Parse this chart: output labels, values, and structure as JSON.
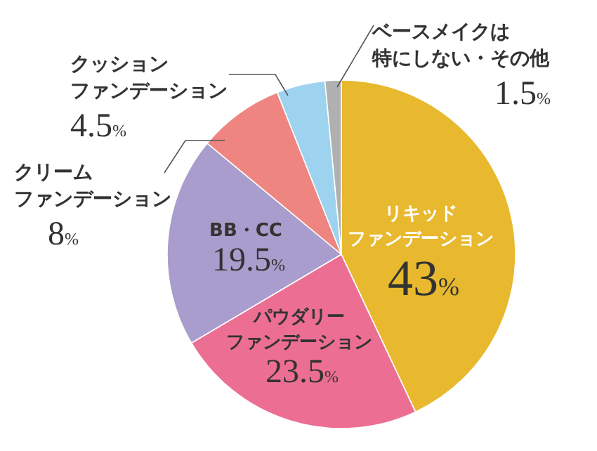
{
  "chart_data": {
    "type": "pie",
    "categories": [
      "リキッドファンデーション",
      "パウダリーファンデーション",
      "BB・CC",
      "クリームファンデーション",
      "クッションファンデーション",
      "ベースメイクは特にしない・その他"
    ],
    "values": [
      43,
      23.5,
      19.5,
      8,
      4.5,
      1.5
    ],
    "colors": [
      "#e8b92e",
      "#ec6f93",
      "#a89dcc",
      "#ee8580",
      "#9ed3ef",
      "#b0b0b0"
    ],
    "value_labels": [
      "43%",
      "23.5%",
      "19.5%",
      "8%",
      "4.5%",
      "1.5%"
    ]
  }
}
